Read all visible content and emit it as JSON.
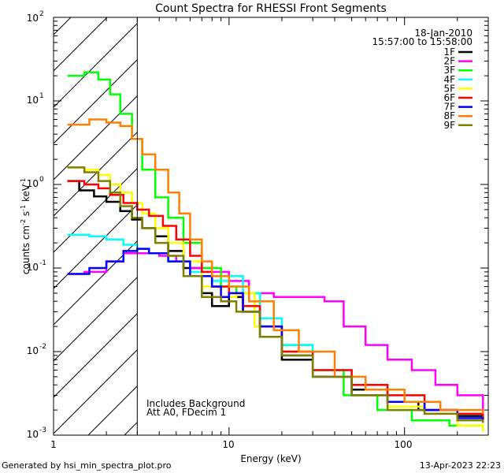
{
  "chart_data": {
    "type": "line",
    "title": "Count Spectra for RHESSI Front Segments",
    "xlabel": "Energy (keV)",
    "ylabel": "counts cm",
    "ylabel_sup1": "-2",
    "ylabel_mid": " s",
    "ylabel_sup2": "-1",
    "ylabel_end": " keV",
    "ylabel_sup3": "-1",
    "x_scale": "log",
    "y_scale": "log",
    "xlim": [
      1,
      300
    ],
    "ylim": [
      0.001,
      100
    ],
    "x_ticks": [
      {
        "value": 1,
        "label": "1"
      },
      {
        "value": 10,
        "label": "10"
      },
      {
        "value": 100,
        "label": "100"
      }
    ],
    "y_ticks": [
      {
        "value": 100,
        "base": "10",
        "exp": "2"
      },
      {
        "value": 10,
        "base": "10",
        "exp": "1"
      },
      {
        "value": 1,
        "base": "10",
        "exp": "0"
      },
      {
        "value": 0.1,
        "base": "10",
        "exp": "-1"
      },
      {
        "value": 0.01,
        "base": "10",
        "exp": "-2"
      },
      {
        "value": 0.001,
        "base": "10",
        "exp": "-3"
      }
    ],
    "hatched_region": {
      "from": 1,
      "to": 3
    },
    "date_label": "18-Jan-2010",
    "time_label": "15:57:00 to 15:58:00",
    "annotations": [
      "Includes Background",
      "Att A0, FDecim 1"
    ],
    "series": [
      {
        "name": "1F",
        "color": "#000000",
        "points": [
          [
            1.2,
            1.1
          ],
          [
            1.4,
            0.85
          ],
          [
            1.7,
            0.72
          ],
          [
            2.0,
            0.62
          ],
          [
            2.4,
            0.48
          ],
          [
            2.8,
            0.38
          ],
          [
            3.2,
            0.3
          ],
          [
            3.8,
            0.24
          ],
          [
            4.5,
            0.16
          ],
          [
            5.5,
            0.1
          ],
          [
            7,
            0.05
          ],
          [
            8,
            0.035
          ],
          [
            10,
            0.045
          ],
          [
            12,
            0.03
          ],
          [
            15,
            0.015
          ],
          [
            20,
            0.008
          ],
          [
            30,
            0.005
          ],
          [
            50,
            0.0035
          ],
          [
            80,
            0.0025
          ],
          [
            120,
            0.002
          ],
          [
            200,
            0.0017
          ],
          [
            280,
            0.0015
          ]
        ]
      },
      {
        "name": "2F",
        "color": "#ff00ff",
        "points": [
          [
            1.2,
            0.085
          ],
          [
            1.5,
            0.09
          ],
          [
            2.0,
            0.12
          ],
          [
            2.5,
            0.15
          ],
          [
            3.0,
            0.15
          ],
          [
            4,
            0.14
          ],
          [
            5,
            0.12
          ],
          [
            6,
            0.1
          ],
          [
            8,
            0.09
          ],
          [
            10,
            0.07
          ],
          [
            13,
            0.05
          ],
          [
            18,
            0.045
          ],
          [
            25,
            0.045
          ],
          [
            35,
            0.04
          ],
          [
            45,
            0.02
          ],
          [
            60,
            0.012
          ],
          [
            80,
            0.008
          ],
          [
            110,
            0.006
          ],
          [
            150,
            0.004
          ],
          [
            200,
            0.003
          ],
          [
            280,
            0.002
          ]
        ]
      },
      {
        "name": "3F",
        "color": "#00ff00",
        "points": [
          [
            1.2,
            20
          ],
          [
            1.5,
            22
          ],
          [
            1.8,
            18
          ],
          [
            2.1,
            12
          ],
          [
            2.4,
            7
          ],
          [
            2.8,
            3.5
          ],
          [
            3.2,
            1.5
          ],
          [
            3.8,
            0.7
          ],
          [
            4.5,
            0.4
          ],
          [
            5.5,
            0.2
          ],
          [
            7,
            0.1
          ],
          [
            9,
            0.06
          ],
          [
            11,
            0.05
          ],
          [
            15,
            0.02
          ],
          [
            20,
            0.012
          ],
          [
            30,
            0.006
          ],
          [
            45,
            0.003
          ],
          [
            70,
            0.002
          ],
          [
            110,
            0.0015
          ],
          [
            180,
            0.0013
          ],
          [
            280,
            0.0012
          ]
        ]
      },
      {
        "name": "4F",
        "color": "#00ffff",
        "points": [
          [
            1.2,
            0.25
          ],
          [
            1.6,
            0.24
          ],
          [
            2.0,
            0.22
          ],
          [
            2.5,
            0.19
          ],
          [
            3.0,
            0.17
          ],
          [
            3.5,
            0.15
          ],
          [
            4.5,
            0.12
          ],
          [
            6,
            0.09
          ],
          [
            8,
            0.07
          ],
          [
            10,
            0.08
          ],
          [
            12,
            0.05
          ],
          [
            15,
            0.025
          ],
          [
            20,
            0.012
          ],
          [
            30,
            0.006
          ],
          [
            50,
            0.004
          ],
          [
            80,
            0.003
          ],
          [
            130,
            0.002
          ],
          [
            200,
            0.0018
          ],
          [
            280,
            0.002
          ]
        ]
      },
      {
        "name": "5F",
        "color": "#ffff00",
        "points": [
          [
            1.2,
            1.6
          ],
          [
            1.5,
            1.5
          ],
          [
            1.8,
            1.3
          ],
          [
            2.1,
            1.0
          ],
          [
            2.4,
            0.8
          ],
          [
            2.8,
            0.6
          ],
          [
            3.2,
            0.45
          ],
          [
            3.8,
            0.3
          ],
          [
            4.5,
            0.2
          ],
          [
            5.5,
            0.12
          ],
          [
            7,
            0.06
          ],
          [
            9,
            0.045
          ],
          [
            11,
            0.05
          ],
          [
            14,
            0.02
          ],
          [
            20,
            0.01
          ],
          [
            30,
            0.005
          ],
          [
            50,
            0.003
          ],
          [
            80,
            0.0022
          ],
          [
            130,
            0.0018
          ],
          [
            200,
            0.0013
          ],
          [
            280,
            0.0011
          ]
        ]
      },
      {
        "name": "6F",
        "color": "#ff0000",
        "points": [
          [
            1.2,
            1.1
          ],
          [
            1.5,
            1.0
          ],
          [
            1.8,
            0.9
          ],
          [
            2.1,
            0.75
          ],
          [
            2.5,
            0.6
          ],
          [
            3.0,
            0.5
          ],
          [
            3.5,
            0.42
          ],
          [
            4.2,
            0.32
          ],
          [
            5,
            0.22
          ],
          [
            6,
            0.14
          ],
          [
            7,
            0.09
          ],
          [
            8,
            0.06
          ],
          [
            10,
            0.05
          ],
          [
            12,
            0.035
          ],
          [
            15,
            0.02
          ],
          [
            20,
            0.01
          ],
          [
            30,
            0.006
          ],
          [
            50,
            0.004
          ],
          [
            80,
            0.003
          ],
          [
            130,
            0.002
          ],
          [
            200,
            0.0018
          ],
          [
            280,
            0.0016
          ]
        ]
      },
      {
        "name": "7F",
        "color": "#0000ff",
        "points": [
          [
            1.2,
            0.085
          ],
          [
            1.6,
            0.1
          ],
          [
            2.0,
            0.12
          ],
          [
            2.5,
            0.16
          ],
          [
            3.0,
            0.17
          ],
          [
            3.5,
            0.15
          ],
          [
            4.5,
            0.12
          ],
          [
            6,
            0.08
          ],
          [
            8,
            0.06
          ],
          [
            9,
            0.045
          ],
          [
            10,
            0.05
          ],
          [
            12,
            0.03
          ],
          [
            15,
            0.02
          ],
          [
            20,
            0.009
          ],
          [
            30,
            0.005
          ],
          [
            50,
            0.003
          ],
          [
            80,
            0.0025
          ],
          [
            130,
            0.002
          ],
          [
            200,
            0.0016
          ],
          [
            280,
            0.0015
          ]
        ]
      },
      {
        "name": "8F",
        "color": "#ff8000",
        "points": [
          [
            1.2,
            5.2
          ],
          [
            1.6,
            6.0
          ],
          [
            2.0,
            5.5
          ],
          [
            2.4,
            5.0
          ],
          [
            2.8,
            3.5
          ],
          [
            3.2,
            2.3
          ],
          [
            3.8,
            1.5
          ],
          [
            4.5,
            0.8
          ],
          [
            5.2,
            0.45
          ],
          [
            6,
            0.22
          ],
          [
            7,
            0.12
          ],
          [
            8,
            0.08
          ],
          [
            10,
            0.06
          ],
          [
            13,
            0.04
          ],
          [
            18,
            0.018
          ],
          [
            25,
            0.01
          ],
          [
            40,
            0.005
          ],
          [
            60,
            0.0035
          ],
          [
            100,
            0.0025
          ],
          [
            160,
            0.002
          ],
          [
            280,
            0.0018
          ]
        ]
      },
      {
        "name": "9F",
        "color": "#808000",
        "points": [
          [
            1.2,
            1.6
          ],
          [
            1.5,
            1.4
          ],
          [
            1.8,
            1.1
          ],
          [
            2.1,
            0.8
          ],
          [
            2.4,
            0.55
          ],
          [
            2.8,
            0.4
          ],
          [
            3.2,
            0.3
          ],
          [
            3.8,
            0.2
          ],
          [
            4.5,
            0.14
          ],
          [
            5.5,
            0.08
          ],
          [
            7,
            0.045
          ],
          [
            9,
            0.04
          ],
          [
            11,
            0.03
          ],
          [
            15,
            0.015
          ],
          [
            20,
            0.009
          ],
          [
            30,
            0.005
          ],
          [
            50,
            0.003
          ],
          [
            80,
            0.002
          ],
          [
            130,
            0.0018
          ],
          [
            200,
            0.0015
          ],
          [
            280,
            0.0014
          ]
        ]
      }
    ]
  },
  "footer": {
    "generated_by": "Generated by hsi_min_spectra_plot.pro",
    "timestamp": "13-Apr-2023 22:23"
  }
}
